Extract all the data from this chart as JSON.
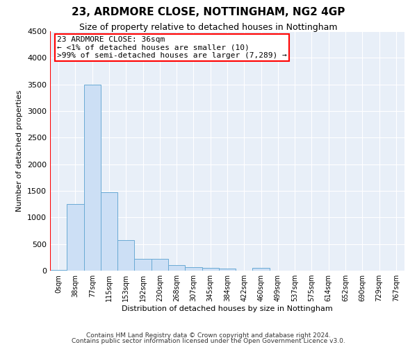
{
  "title": "23, ARDMORE CLOSE, NOTTINGHAM, NG2 4GP",
  "subtitle": "Size of property relative to detached houses in Nottingham",
  "xlabel": "Distribution of detached houses by size in Nottingham",
  "ylabel": "Number of detached properties",
  "categories": [
    "0sqm",
    "38sqm",
    "77sqm",
    "115sqm",
    "153sqm",
    "192sqm",
    "230sqm",
    "268sqm",
    "307sqm",
    "345sqm",
    "384sqm",
    "422sqm",
    "460sqm",
    "499sqm",
    "537sqm",
    "575sqm",
    "614sqm",
    "652sqm",
    "690sqm",
    "729sqm",
    "767sqm"
  ],
  "values": [
    10,
    1250,
    3500,
    1470,
    570,
    220,
    220,
    110,
    70,
    50,
    40,
    0,
    55,
    0,
    0,
    0,
    0,
    0,
    0,
    0,
    0
  ],
  "bar_color": "#ccdff5",
  "bar_edge_color": "#6aaad4",
  "annotation_box_text1": "23 ARDMORE CLOSE: 36sqm",
  "annotation_box_text2": "← <1% of detached houses are smaller (10)",
  "annotation_box_text3": ">99% of semi-detached houses are larger (7,289) →",
  "box_facecolor": "white",
  "box_edgecolor": "red",
  "ylim": [
    0,
    4500
  ],
  "yticks": [
    0,
    500,
    1000,
    1500,
    2000,
    2500,
    3000,
    3500,
    4000,
    4500
  ],
  "footer1": "Contains HM Land Registry data © Crown copyright and database right 2024.",
  "footer2": "Contains public sector information licensed under the Open Government Licence v3.0.",
  "title_fontsize": 11,
  "subtitle_fontsize": 9,
  "xlabel_fontsize": 8,
  "ylabel_fontsize": 8,
  "ytick_fontsize": 8,
  "xtick_fontsize": 7,
  "ann_fontsize": 8,
  "footer_fontsize": 6.5,
  "bg_color": "#e8eff8",
  "grid_color": "#d0dbe8"
}
